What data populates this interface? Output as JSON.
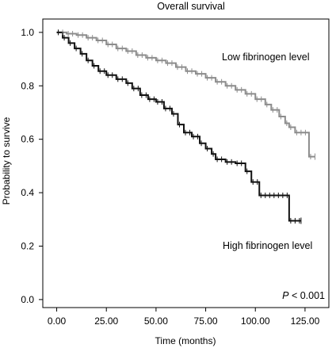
{
  "chart_data": {
    "type": "line",
    "title": "Overall survival",
    "xlabel": "Time (months)",
    "ylabel": "Probability to survive",
    "xlim": [
      -7,
      137
    ],
    "ylim": [
      -0.03,
      1.05
    ],
    "x_ticks": [
      0,
      25,
      50,
      75,
      100,
      125
    ],
    "x_tick_labels": [
      "0.00",
      "25.00",
      "50.00",
      "75.00",
      "100.00",
      "125.00"
    ],
    "y_ticks": [
      0.0,
      0.2,
      0.4,
      0.6,
      0.8,
      1.0
    ],
    "y_tick_labels": [
      "0.0",
      "0.2",
      "0.4",
      "0.6",
      "0.8",
      "1.0"
    ],
    "grid": false,
    "p_value": {
      "italic": "P",
      "rest": " < 0.001"
    },
    "series": [
      {
        "name": "Low fibrinogen level",
        "color": "#8c8c8c",
        "points": [
          [
            0,
            1.0
          ],
          [
            5,
            0.995
          ],
          [
            10,
            0.99
          ],
          [
            15,
            0.98
          ],
          [
            20,
            0.97
          ],
          [
            25,
            0.955
          ],
          [
            30,
            0.94
          ],
          [
            35,
            0.93
          ],
          [
            40,
            0.915
          ],
          [
            45,
            0.905
          ],
          [
            50,
            0.895
          ],
          [
            55,
            0.885
          ],
          [
            60,
            0.87
          ],
          [
            65,
            0.855
          ],
          [
            70,
            0.845
          ],
          [
            75,
            0.83
          ],
          [
            80,
            0.815
          ],
          [
            85,
            0.8
          ],
          [
            90,
            0.785
          ],
          [
            95,
            0.77
          ],
          [
            100,
            0.75
          ],
          [
            105,
            0.73
          ],
          [
            108,
            0.71
          ],
          [
            112,
            0.685
          ],
          [
            115,
            0.66
          ],
          [
            117,
            0.645
          ],
          [
            120,
            0.625
          ],
          [
            127,
            0.625
          ],
          [
            127,
            0.535
          ],
          [
            130,
            0.535
          ]
        ]
      },
      {
        "name": "High fibrinogen level",
        "color": "#111111",
        "points": [
          [
            0,
            1.0
          ],
          [
            3,
            0.98
          ],
          [
            6,
            0.96
          ],
          [
            9,
            0.94
          ],
          [
            12,
            0.92
          ],
          [
            15,
            0.895
          ],
          [
            18,
            0.875
          ],
          [
            21,
            0.855
          ],
          [
            25,
            0.84
          ],
          [
            30,
            0.825
          ],
          [
            35,
            0.81
          ],
          [
            38,
            0.79
          ],
          [
            42,
            0.765
          ],
          [
            46,
            0.75
          ],
          [
            50,
            0.74
          ],
          [
            54,
            0.715
          ],
          [
            58,
            0.695
          ],
          [
            61,
            0.655
          ],
          [
            64,
            0.625
          ],
          [
            68,
            0.61
          ],
          [
            72,
            0.585
          ],
          [
            75,
            0.565
          ],
          [
            78,
            0.545
          ],
          [
            80,
            0.525
          ],
          [
            85,
            0.515
          ],
          [
            90,
            0.51
          ],
          [
            95,
            0.48
          ],
          [
            98,
            0.44
          ],
          [
            102,
            0.39
          ],
          [
            117,
            0.39
          ],
          [
            117,
            0.295
          ],
          [
            123,
            0.295
          ]
        ]
      }
    ]
  }
}
